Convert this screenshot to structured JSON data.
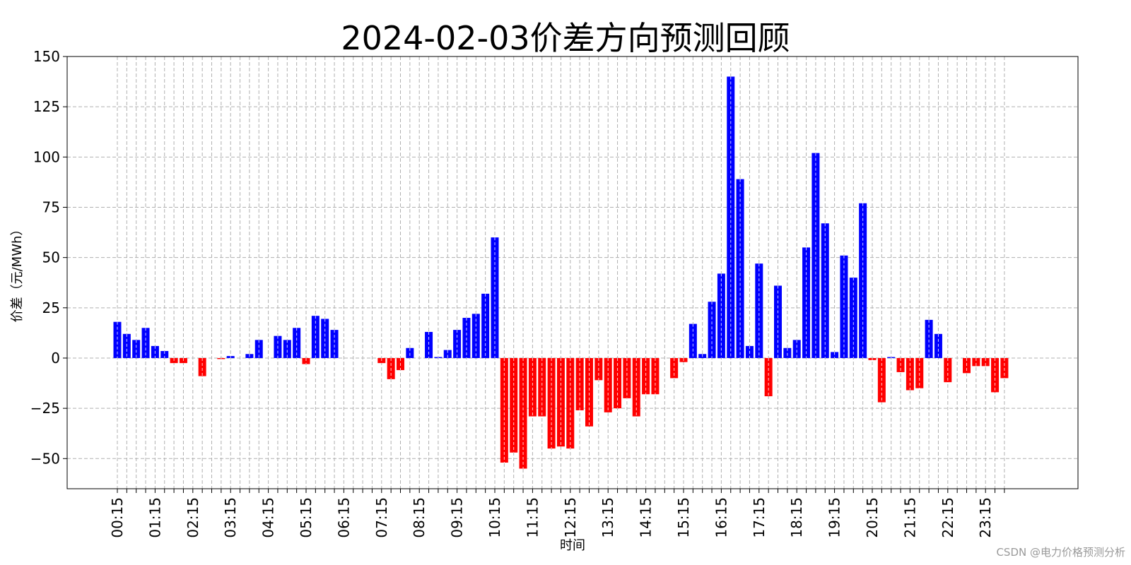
{
  "chart_data": {
    "type": "bar",
    "title": "2024-02-03价差方向预测回顾",
    "xlabel": "时间",
    "ylabel": "价差（元/MWh）",
    "ylim": [
      -65,
      150
    ],
    "yticks": [
      150,
      125,
      100,
      75,
      50,
      25,
      0,
      -25,
      -50
    ],
    "grid": true,
    "x_tick_labels": [
      "00:15",
      "01:15",
      "02:15",
      "03:15",
      "04:15",
      "05:15",
      "06:15",
      "07:15",
      "08:15",
      "09:15",
      "10:15",
      "11:15",
      "12:15",
      "13:15",
      "14:15",
      "15:15",
      "16:15",
      "17:15",
      "18:15",
      "19:15",
      "20:15",
      "21:15",
      "22:15",
      "23:15"
    ],
    "positive_color": "#0000ff",
    "negative_color": "#ff0000",
    "values": [
      18,
      12,
      9,
      15,
      6,
      3.5,
      -2.5,
      -2.5,
      0,
      -9,
      0,
      -0.5,
      1,
      0,
      2,
      9,
      0,
      11,
      9,
      15,
      -3,
      21,
      19.5,
      14,
      0,
      0,
      0,
      0,
      -2.5,
      -10.5,
      -6,
      5,
      0,
      13,
      0.5,
      4,
      14,
      20,
      22,
      32,
      60,
      -52,
      -47,
      -55,
      -29,
      -29,
      -45,
      -44,
      -45,
      -26,
      -34,
      -11,
      -27,
      -25,
      -20,
      -29,
      -18,
      -18,
      0,
      -10,
      -2,
      17,
      2,
      28,
      42,
      140,
      89,
      6,
      47,
      -19,
      36,
      5,
      9,
      55,
      102,
      67,
      3,
      51,
      40,
      77,
      -1,
      -22,
      0.5,
      -7,
      -16,
      -15,
      19,
      12,
      -12,
      0,
      -7.5,
      -4,
      -4,
      -17,
      -10
    ]
  },
  "watermark": "CSDN @电力价格预测分析"
}
